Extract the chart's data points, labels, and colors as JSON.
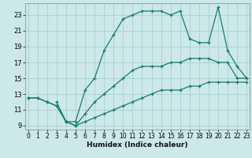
{
  "xlabel": "Humidex (Indice chaleur)",
  "bg_color": "#cce8e8",
  "grid_color": "#aacfcf",
  "line_color": "#1a7a6e",
  "series": [
    {
      "x": [
        0,
        1,
        2,
        3,
        4,
        5,
        6,
        7,
        8,
        9,
        10,
        11,
        12,
        13,
        14,
        15,
        16,
        17,
        18,
        19,
        20,
        21,
        22,
        23
      ],
      "y": [
        12.5,
        12.5,
        12.0,
        11.5,
        9.5,
        9.0,
        9.5,
        10.0,
        10.5,
        11.0,
        11.5,
        12.0,
        12.5,
        13.0,
        13.5,
        13.5,
        13.5,
        14.0,
        14.0,
        14.5,
        14.5,
        14.5,
        14.5,
        14.5
      ]
    },
    {
      "x": [
        0,
        1,
        2,
        3,
        4,
        5,
        6,
        7,
        8,
        9,
        10,
        11,
        12,
        13,
        14,
        15,
        16,
        17,
        18,
        19,
        20,
        21,
        22,
        23
      ],
      "y": [
        12.5,
        12.5,
        12.0,
        11.5,
        9.5,
        9.0,
        10.5,
        12.0,
        13.0,
        14.0,
        15.0,
        16.0,
        16.5,
        16.5,
        16.5,
        17.0,
        17.0,
        17.5,
        17.5,
        17.5,
        17.0,
        17.0,
        15.0,
        15.0
      ]
    },
    {
      "x": [
        3,
        4,
        5,
        6,
        7,
        8,
        9,
        10,
        11,
        12,
        13,
        14,
        15,
        16,
        17,
        18,
        19,
        20,
        21,
        22,
        23
      ],
      "y": [
        12.0,
        9.5,
        9.5,
        13.5,
        15.0,
        18.5,
        20.5,
        22.5,
        23.0,
        23.5,
        23.5,
        23.5,
        23.0,
        23.5,
        20.0,
        19.5,
        19.5,
        24.0,
        18.5,
        16.5,
        15.0
      ]
    }
  ],
  "xlim": [
    -0.3,
    23.3
  ],
  "ylim": [
    8.5,
    24.5
  ],
  "yticks": [
    9,
    11,
    13,
    15,
    17,
    19,
    21,
    23
  ],
  "xticks": [
    0,
    1,
    2,
    3,
    4,
    5,
    6,
    7,
    8,
    9,
    10,
    11,
    12,
    13,
    14,
    15,
    16,
    17,
    18,
    19,
    20,
    21,
    22,
    23
  ],
  "xlabel_fontsize": 6.5,
  "tick_fontsize": 5.5,
  "linewidth": 0.9,
  "markersize": 3,
  "figsize": [
    3.2,
    2.0
  ],
  "dpi": 100
}
